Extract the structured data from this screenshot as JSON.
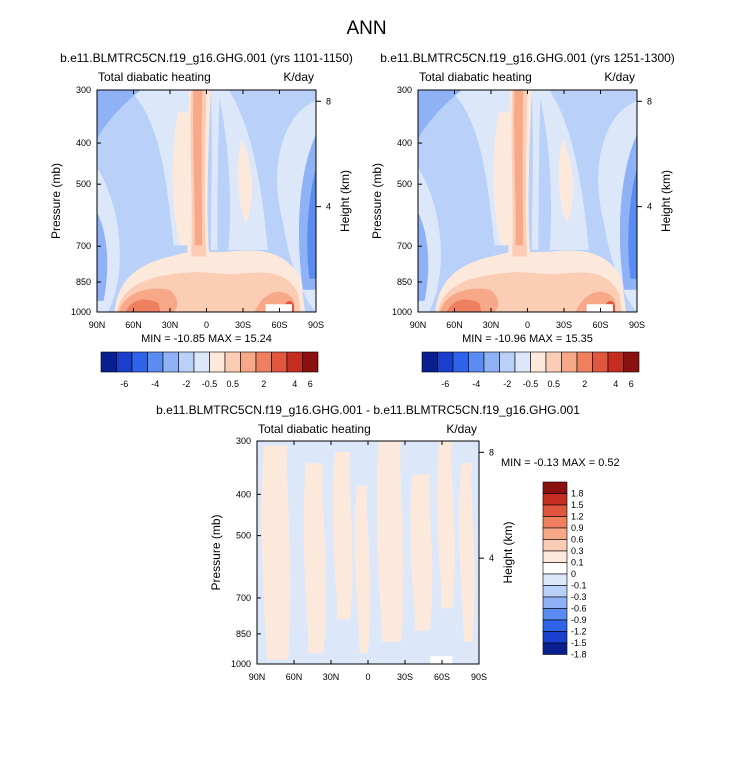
{
  "page_title": "ANN",
  "chart_data": [
    {
      "type": "heatmap",
      "title": "b.e11.BLMTRC5CN.f19_g16.GHG.001 (yrs 1101-1150)",
      "subtitle_left": "Total diabatic heating",
      "subtitle_right": "K/day",
      "xlabel": "",
      "ylabel": "Pressure (mb)",
      "ylabel_right": "Height (km)",
      "x_ticks": [
        "90N",
        "60N",
        "30N",
        "0",
        "30S",
        "60S",
        "90S"
      ],
      "y_ticks": [
        "300",
        "400",
        "500",
        "700",
        "850",
        "1000"
      ],
      "y_right_ticks": [
        "8",
        "4"
      ],
      "min_max": "MIN = -10.85  MAX =  15.24",
      "colorbar_labels": [
        "-6",
        "-4",
        "-2",
        "-0.5",
        "0.5",
        "2",
        "4",
        "6"
      ],
      "colorbar_colors": [
        "#0a1f8f",
        "#1a3fcf",
        "#2e63ea",
        "#5a8cf2",
        "#8fb2f6",
        "#b9d0f8",
        "#dce8fa",
        "#fde9dc",
        "#fbcdb5",
        "#f6a888",
        "#ee8060",
        "#e1563e",
        "#c42d20",
        "#8b1010"
      ]
    },
    {
      "type": "heatmap",
      "title": "b.e11.BLMTRC5CN.f19_g16.GHG.001 (yrs 1251-1300)",
      "subtitle_left": "Total diabatic heating",
      "subtitle_right": "K/day",
      "xlabel": "",
      "ylabel": "Pressure (mb)",
      "ylabel_right": "Height (km)",
      "x_ticks": [
        "90N",
        "60N",
        "30N",
        "0",
        "30S",
        "60S",
        "90S"
      ],
      "y_ticks": [
        "300",
        "400",
        "500",
        "700",
        "850",
        "1000"
      ],
      "y_right_ticks": [
        "8",
        "4"
      ],
      "min_max": "MIN = -10.96  MAX =  15.35",
      "colorbar_labels": [
        "-6",
        "-4",
        "-2",
        "-0.5",
        "0.5",
        "2",
        "4",
        "6"
      ],
      "colorbar_colors": [
        "#0a1f8f",
        "#1a3fcf",
        "#2e63ea",
        "#5a8cf2",
        "#8fb2f6",
        "#b9d0f8",
        "#dce8fa",
        "#fde9dc",
        "#fbcdb5",
        "#f6a888",
        "#ee8060",
        "#e1563e",
        "#c42d20",
        "#8b1010"
      ]
    },
    {
      "type": "heatmap",
      "title": "b.e11.BLMTRC5CN.f19_g16.GHG.001 - b.e11.BLMTRC5CN.f19_g16.GHG.001",
      "subtitle_left": "Total diabatic heating",
      "subtitle_right": "K/day",
      "xlabel": "",
      "ylabel": "Pressure (mb)",
      "ylabel_right": "Height (km)",
      "x_ticks": [
        "90N",
        "60N",
        "30N",
        "0",
        "30S",
        "60S",
        "90S"
      ],
      "y_ticks": [
        "300",
        "400",
        "500",
        "700",
        "850",
        "1000"
      ],
      "y_right_ticks": [
        "8",
        "4"
      ],
      "min_max": "MIN = -0.13  MAX =  0.52",
      "colorbar_labels": [
        "1.8",
        "1.5",
        "1.2",
        "0.9",
        "0.6",
        "0.3",
        "0.1",
        "0",
        "-0.1",
        "-0.3",
        "-0.6",
        "-0.9",
        "-1.2",
        "-1.5",
        "-1.8"
      ],
      "colorbar_colors": [
        "#8b1010",
        "#c42d20",
        "#e1563e",
        "#ee8060",
        "#f6a888",
        "#fbcdb5",
        "#fde9dc",
        "#ffffff",
        "#dce8fa",
        "#b9d0f8",
        "#8fb2f6",
        "#5a8cf2",
        "#2e63ea",
        "#1a3fcf",
        "#0a1f8f"
      ]
    }
  ]
}
